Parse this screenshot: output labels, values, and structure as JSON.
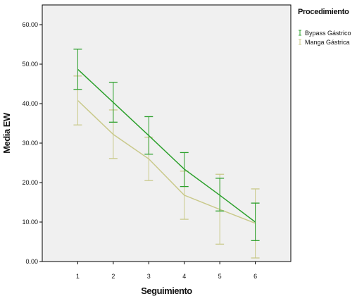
{
  "chart_data": {
    "type": "line",
    "xlabel": "Seguimiento",
    "ylabel": "Media EW",
    "x": [
      1,
      2,
      3,
      4,
      5,
      6
    ],
    "xlim": [
      0,
      7
    ],
    "ylim": [
      0,
      65
    ],
    "yticks": [
      "0.00",
      "10.00",
      "20.00",
      "30.00",
      "40.00",
      "50.00",
      "60.00"
    ],
    "ytick_values": [
      0,
      10,
      20,
      30,
      40,
      50,
      60
    ],
    "xticks": [
      "1",
      "2",
      "3",
      "4",
      "5",
      "6"
    ],
    "grid": false,
    "legend_title": "Procedimiento",
    "legend_position": "top-right-outside",
    "series": [
      {
        "name": "Bypass Gástrico",
        "color": "#2ca02c",
        "values": [
          48.7,
          40.3,
          31.9,
          23.4,
          16.8,
          10.0
        ],
        "error_low": [
          43.6,
          35.3,
          27.2,
          19.0,
          12.8,
          5.3
        ],
        "error_high": [
          53.8,
          45.4,
          36.7,
          27.6,
          21.1,
          14.8
        ]
      },
      {
        "name": "Manga Gástrica",
        "color": "#c9c98a",
        "values": [
          40.8,
          32.2,
          26.0,
          16.8,
          13.2,
          9.7
        ],
        "error_low": [
          34.6,
          26.1,
          20.5,
          10.7,
          4.4,
          0.9
        ],
        "error_high": [
          47.0,
          38.4,
          31.5,
          22.9,
          22.1,
          18.4
        ]
      }
    ]
  }
}
